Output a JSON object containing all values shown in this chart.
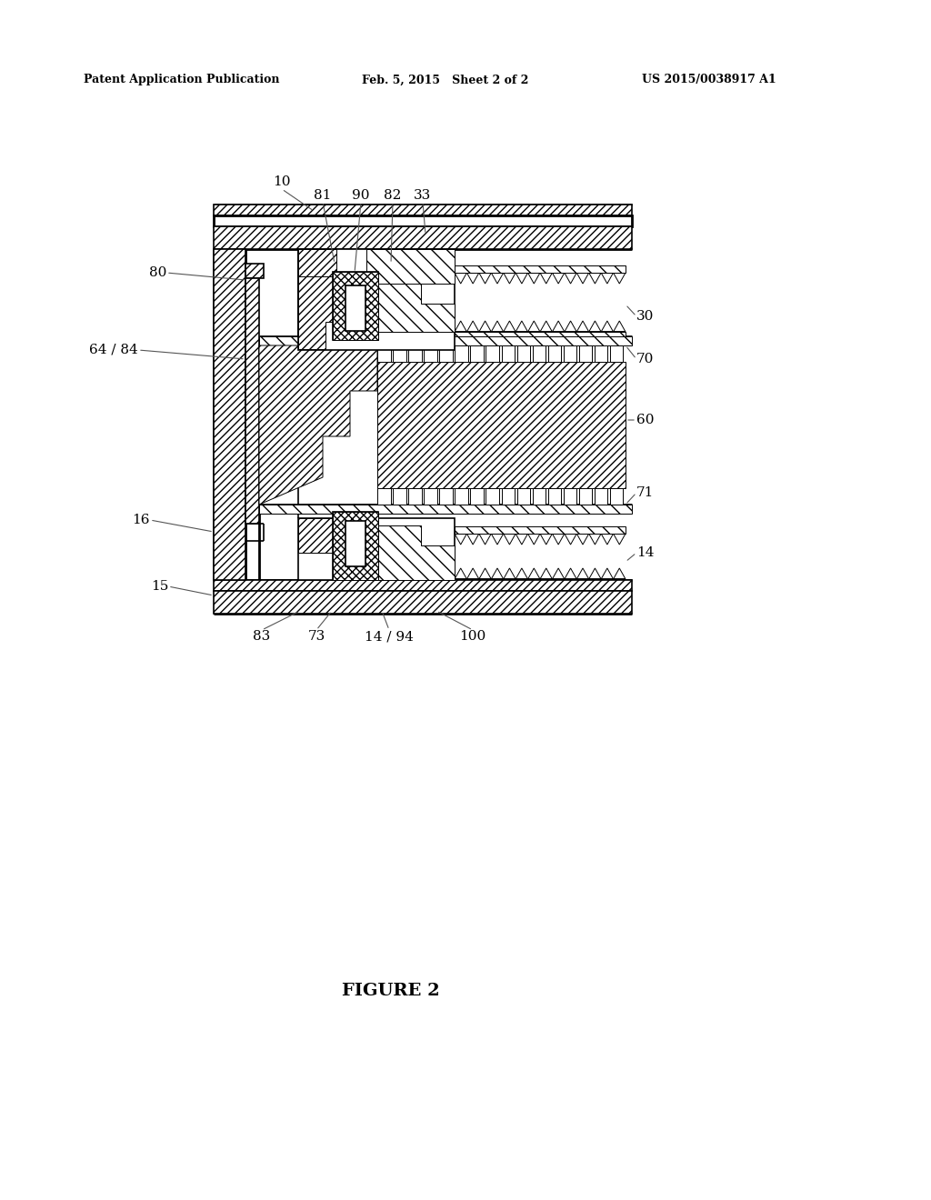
{
  "bg": "#ffffff",
  "header_left": "Patent Application Publication",
  "header_mid": "Feb. 5, 2015   Sheet 2 of 2",
  "header_right": "US 2015/0038917 A1",
  "caption": "FIGURE 2",
  "lw": 1.2,
  "lw_thick": 2.0,
  "lw_thin": 0.7,
  "gray": "#888888"
}
